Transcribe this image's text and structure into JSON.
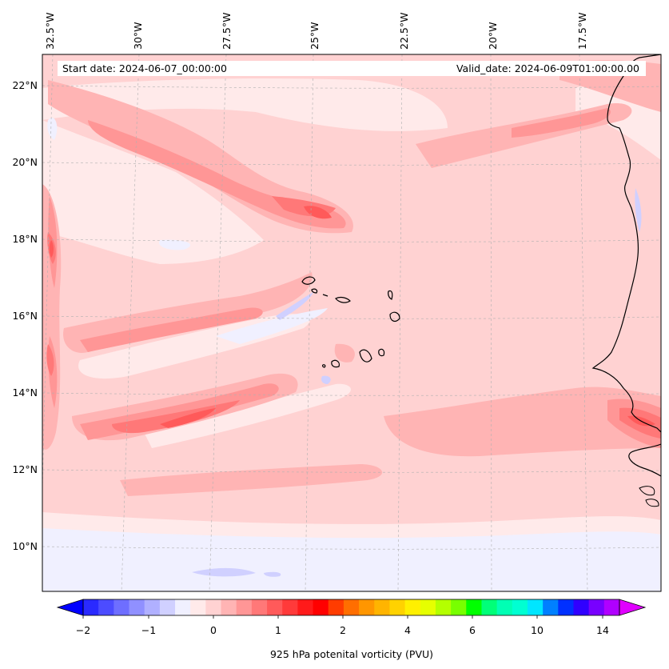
{
  "header": {
    "start_date": "Start date: 2024-06-07_00:00:00",
    "valid_date": "Valid_date: 2024-06-09T01:00:00.00"
  },
  "map": {
    "lon_labels": [
      "32.5°W",
      "30°W",
      "27.5°W",
      "25°W",
      "22.5°W",
      "20°W",
      "17.5°W"
    ],
    "lat_labels": [
      "22°N",
      "20°N",
      "18°N",
      "16°N",
      "14°N",
      "12°N",
      "10°N"
    ],
    "background_field": "#ffd2d2"
  },
  "colorbar": {
    "label": "925 hPa potenital vorticity (PVU)",
    "tick_labels": [
      "−2",
      "−1",
      "0",
      "1",
      "2",
      "4",
      "6",
      "10",
      "14"
    ],
    "colors": [
      "#0000ff",
      "#2a2aff",
      "#4c4cff",
      "#6e6eff",
      "#9090ff",
      "#b0b0ff",
      "#d0d0ff",
      "#f0f0ff",
      "#ffeaea",
      "#ffd2d2",
      "#ffb4b4",
      "#ff9696",
      "#ff7878",
      "#ff5a5a",
      "#ff3a3a",
      "#ff1a1a",
      "#ff0000",
      "#ff3c00",
      "#ff6e00",
      "#ff9600",
      "#ffb400",
      "#ffd200",
      "#fff000",
      "#e6ff00",
      "#b4ff00",
      "#78ff00",
      "#00ff00",
      "#00ff78",
      "#00ffb4",
      "#00ffd2",
      "#00e6ff",
      "#0080ff",
      "#0030ff",
      "#3000ff",
      "#7800ff",
      "#b000ff",
      "#e000ff"
    ]
  }
}
